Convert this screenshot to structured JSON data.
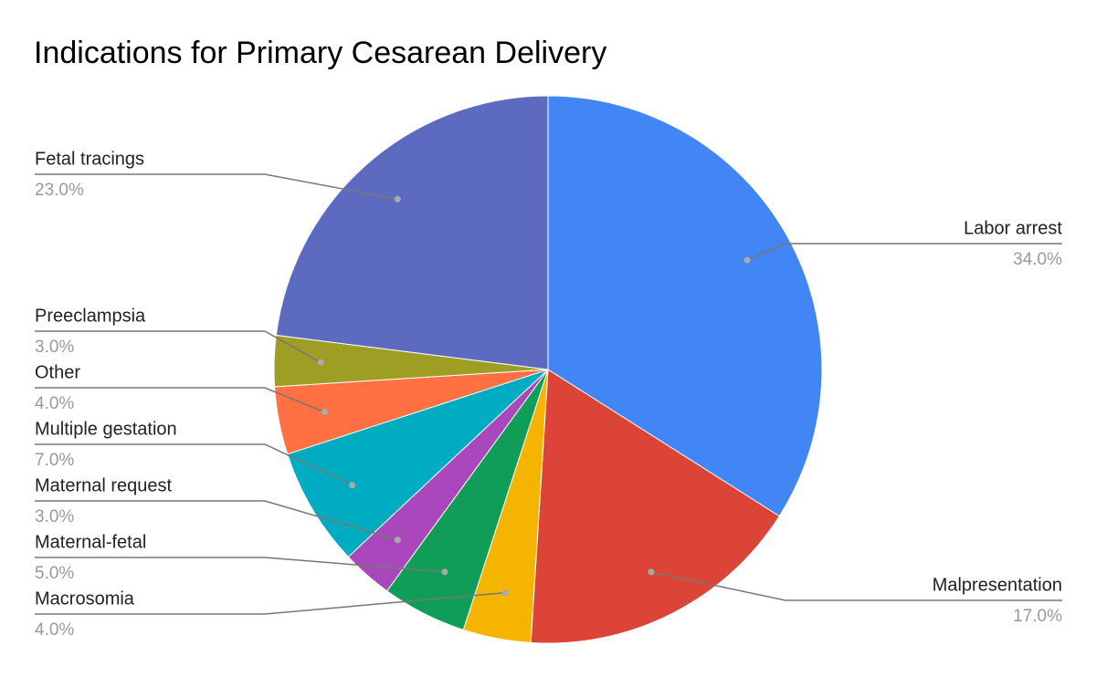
{
  "chart_data": {
    "type": "pie",
    "title": "Indications for Primary Cesarean Delivery",
    "categories": [
      "Labor arrest",
      "Malpresentation",
      "Macrosomia",
      "Maternal-fetal",
      "Maternal request",
      "Multiple gestation",
      "Other",
      "Preeclampsia",
      "Fetal tracings"
    ],
    "values": [
      34,
      17,
      4,
      5,
      3,
      7,
      4,
      3,
      23
    ],
    "value_labels": [
      "34.0%",
      "17.0%",
      "4.0%",
      "5.0%",
      "3.0%",
      "7.0%",
      "4.0%",
      "3.0%",
      "23.0%"
    ],
    "colors": [
      "#4285f4",
      "#db4437",
      "#f4b400",
      "#0f9d58",
      "#ab47bc",
      "#00acc1",
      "#ff7043",
      "#9e9d24",
      "#5c6bc0"
    ]
  }
}
